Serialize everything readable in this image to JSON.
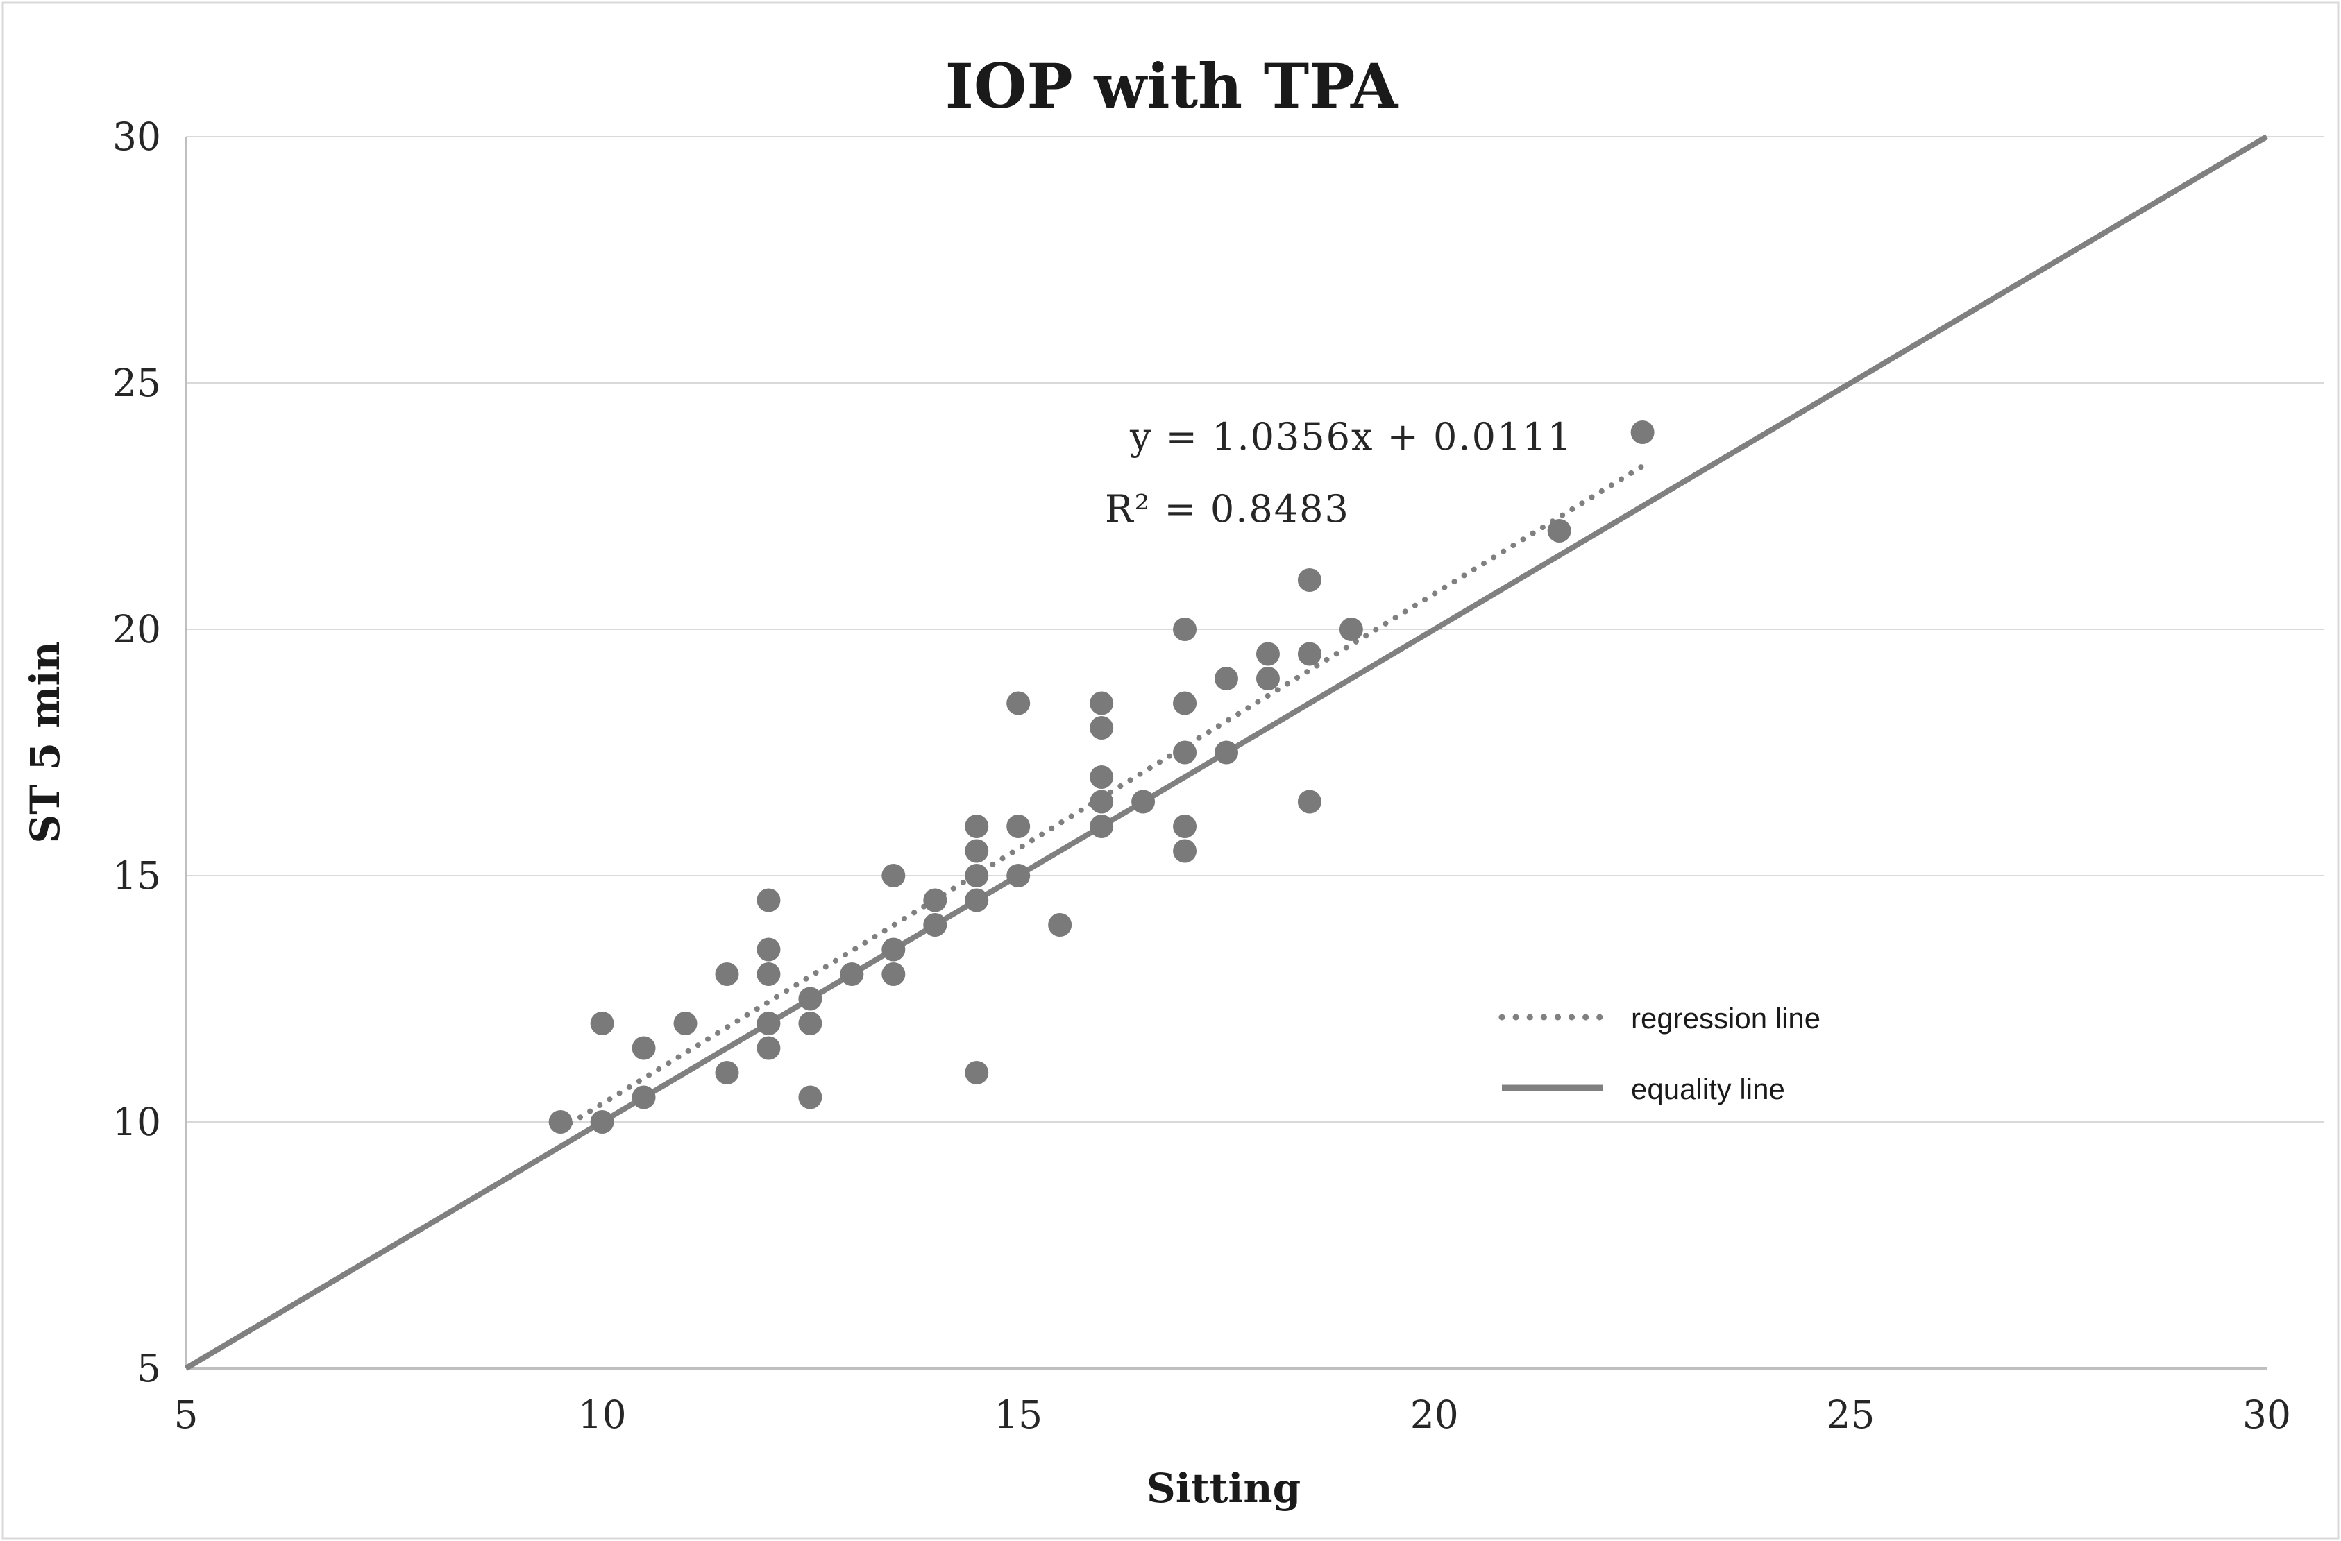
{
  "chart": {
    "title": "IOP with TPA",
    "x_axis_label": "Sitting",
    "y_axis_label": "ST 5 min",
    "annotation": {
      "equation": "y = 1.0356x + 0.0111",
      "r_squared": "R² = 0.8483"
    },
    "legend_items": [
      {
        "label": "regression line",
        "style": "dotted"
      },
      {
        "label": "equality line",
        "style": "solid"
      }
    ],
    "colors": {
      "point": "#7a7a7a",
      "line": "#808080",
      "grid": "#d9d9d9",
      "axis": "#bfbfbf",
      "text": "#262626",
      "border": "#d9d9d9",
      "background": "#ffffff"
    }
  },
  "chart_data": {
    "type": "scatter",
    "title": "IOP with TPA",
    "xlabel": "Sitting",
    "ylabel": "ST 5 min",
    "xlim": [
      5,
      30
    ],
    "ylim": [
      5,
      30
    ],
    "x_ticks": [
      5,
      10,
      15,
      20,
      25,
      30
    ],
    "y_ticks": [
      5,
      10,
      15,
      20,
      25,
      30
    ],
    "grid": "horizontal",
    "legend_position": "middle-right",
    "points": [
      [
        9.5,
        10
      ],
      [
        10,
        10
      ],
      [
        10,
        12
      ],
      [
        10.5,
        10.5
      ],
      [
        10.5,
        11.5
      ],
      [
        11,
        12
      ],
      [
        11.5,
        11
      ],
      [
        11.5,
        13
      ],
      [
        12,
        11.5
      ],
      [
        12,
        12
      ],
      [
        12,
        13
      ],
      [
        12,
        13.5
      ],
      [
        12,
        14.5
      ],
      [
        12.5,
        10.5
      ],
      [
        12.5,
        12
      ],
      [
        12.5,
        12.5
      ],
      [
        13,
        13
      ],
      [
        13.5,
        13
      ],
      [
        13.5,
        13.5
      ],
      [
        13.5,
        15
      ],
      [
        14,
        14
      ],
      [
        14,
        14.5
      ],
      [
        14.5,
        11
      ],
      [
        14.5,
        14.5
      ],
      [
        14.5,
        15
      ],
      [
        14.5,
        15.5
      ],
      [
        14.5,
        16
      ],
      [
        15,
        15
      ],
      [
        15,
        16
      ],
      [
        15,
        18.5
      ],
      [
        15.5,
        14
      ],
      [
        16,
        16
      ],
      [
        16,
        16.5
      ],
      [
        16,
        17
      ],
      [
        16,
        18
      ],
      [
        16,
        18.5
      ],
      [
        16.5,
        16.5
      ],
      [
        17,
        15.5
      ],
      [
        17,
        16
      ],
      [
        17,
        17.5
      ],
      [
        17,
        18.5
      ],
      [
        17,
        20
      ],
      [
        17.5,
        17.5
      ],
      [
        17.5,
        19
      ],
      [
        18,
        19
      ],
      [
        18,
        19.5
      ],
      [
        18.5,
        16.5
      ],
      [
        18.5,
        19.5
      ],
      [
        18.5,
        21
      ],
      [
        19,
        20
      ],
      [
        21.5,
        22
      ],
      [
        22.5,
        24
      ]
    ],
    "regression": {
      "slope": 1.0356,
      "intercept": 0.0111,
      "r2": 0.8483,
      "x_start": 9.5,
      "x_end": 22.5,
      "label": "regression line"
    },
    "equality": {
      "from": [
        5,
        5
      ],
      "to": [
        30,
        30
      ],
      "label": "equality line"
    }
  }
}
